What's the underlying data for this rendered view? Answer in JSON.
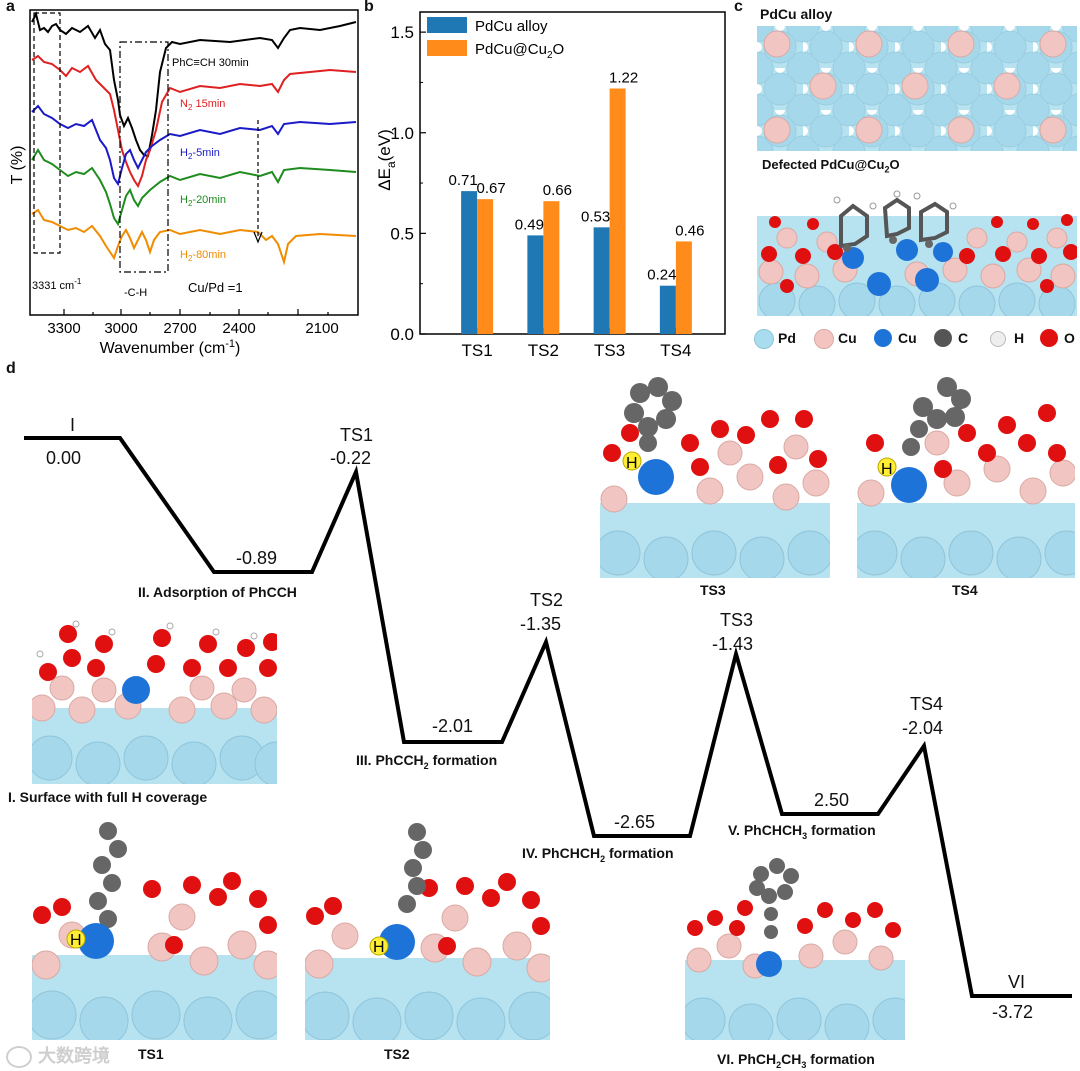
{
  "panels": {
    "a": "a",
    "b": "b",
    "c": "c",
    "d": "d"
  },
  "panel_a": {
    "ylabel": "T (%)",
    "xlabel": "Wavenumber (cm",
    "xlabel_sup": "-1",
    "xlabel_end": ")",
    "ticks": [
      "3300",
      "3000",
      "2700",
      "2400",
      "2100"
    ],
    "box1_label": "3331 cm",
    "box1_label_sup": "-1",
    "box2_label": "-C-H",
    "ratio_label": "Cu/Pd =1",
    "spectra": [
      {
        "label": "PhC≡CH 30min",
        "color": "#000000"
      },
      {
        "label_pre": "N",
        "label_sub": "2",
        "label_post": " 15min",
        "color": "#e02020"
      },
      {
        "label_pre": "H",
        "label_sub": "2",
        "label_post": "-5min",
        "color": "#1a1ac8"
      },
      {
        "label_pre": "H",
        "label_sub": "2",
        "label_post": "-20min",
        "color": "#1e8c1e"
      },
      {
        "label_pre": "H",
        "label_sub": "2",
        "label_post": "-80min",
        "color": "#f08c00"
      }
    ]
  },
  "chart_data": {
    "type": "bar",
    "ylabel_pre": "ΔE",
    "ylabel_sub": "a",
    "ylabel_post": "(eV)",
    "categories": [
      "TS1",
      "TS2",
      "TS3",
      "TS4"
    ],
    "ylim": [
      0.0,
      1.6
    ],
    "yticks": [
      "0.0",
      "0.5",
      "1.0",
      "1.5"
    ],
    "legend_placement": "top-left",
    "series": [
      {
        "name": "PdCu alloy",
        "color": "#1f78b4",
        "values": [
          0.71,
          0.49,
          0.53,
          0.24
        ],
        "labels": [
          "0.71",
          "0.49",
          "0.53",
          "0.24"
        ]
      },
      {
        "name_pre": "PdCu@Cu",
        "name_sub": "2",
        "name_post": "O",
        "color": "#ff8c1a",
        "values": [
          0.67,
          0.66,
          1.22,
          0.46
        ],
        "labels": [
          "0.67",
          "0.66",
          "1.22",
          "0.46"
        ]
      }
    ]
  },
  "panel_c": {
    "title1": "PdCu alloy",
    "title2_pre": "Defected PdCu@Cu",
    "title2_sub": "2",
    "title2_post": "O",
    "legend": [
      {
        "label": "Pd",
        "color": "#a9dcef"
      },
      {
        "label": "Cu",
        "color": "#f3c4c0"
      },
      {
        "label": "Cu",
        "color": "#1e73d8"
      },
      {
        "label": "C",
        "color": "#555555"
      },
      {
        "label": "H",
        "color": "#eeeeee"
      },
      {
        "label": "O",
        "color": "#e01010"
      }
    ]
  },
  "panel_d": {
    "states": [
      {
        "name": "I",
        "value": "0.00"
      },
      {
        "name": "TS1",
        "value": "-0.22"
      },
      {
        "value": "-0.89",
        "caption": "II. Adsorption of PhCCH"
      },
      {
        "name": "TS2",
        "value": "-1.35"
      },
      {
        "value": "-2.01",
        "caption_pre": "III. PhCCH",
        "caption_sub": "2",
        "caption_post": " formation"
      },
      {
        "name": "TS3",
        "value": "-1.43"
      },
      {
        "value": "-2.65",
        "caption_pre": "IV. PhCHCH",
        "caption_sub": "2",
        "caption_post": " formation"
      },
      {
        "name": "TS4",
        "value": "-2.04"
      },
      {
        "value": "2.50",
        "caption_pre": "V. PhCHCH",
        "caption_sub": "3",
        "caption_post": " formation"
      },
      {
        "name": "VI",
        "value": "-3.72"
      }
    ],
    "struct_labels": {
      "surface": "I. Surface with full H coverage",
      "ts1": "TS1",
      "ts2": "TS2",
      "ts3": "TS3",
      "ts4": "TS4",
      "vi_pre": "VI. PhCH",
      "vi_sub1": "2",
      "vi_mid": "CH",
      "vi_sub2": "3",
      "vi_post": " formation"
    },
    "h_label": "H"
  },
  "watermark": "大数跨境"
}
